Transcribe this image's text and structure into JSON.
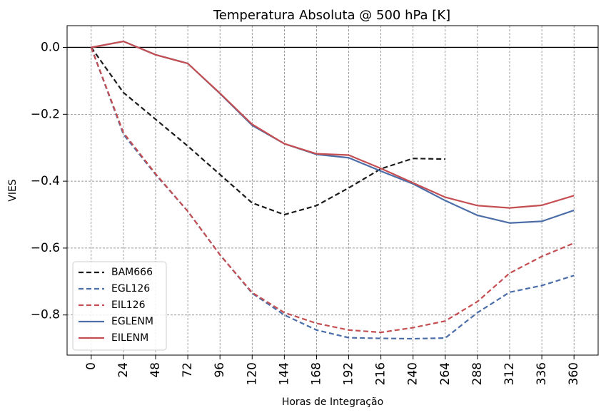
{
  "chart_data": {
    "type": "line",
    "title": "Temperatura Absoluta @ 500 hPa [K]",
    "xlabel": "Horas de Integração",
    "ylabel": "VIES",
    "x": [
      0,
      24,
      48,
      72,
      96,
      120,
      144,
      168,
      192,
      216,
      240,
      264,
      288,
      312,
      336,
      360
    ],
    "x_tick_labels": [
      "0",
      "24",
      "48",
      "72",
      "96",
      "120",
      "144",
      "168",
      "192",
      "216",
      "240",
      "264",
      "288",
      "312",
      "336",
      "360"
    ],
    "y_ticks": [
      0.0,
      -0.2,
      -0.4,
      -0.6,
      -0.8
    ],
    "y_tick_labels": [
      "0.0",
      "−0.2",
      "−0.4",
      "−0.6",
      "−0.8"
    ],
    "xlim": [
      -18,
      378
    ],
    "ylim": [
      -0.92,
      0.065
    ],
    "grid": true,
    "zero_line": true,
    "legend_position": "lower-left",
    "series": [
      {
        "name": "BAM666",
        "color": "#1a1a1a",
        "dash": "dashed",
        "x": [
          0,
          24,
          48,
          72,
          96,
          120,
          144,
          168,
          192,
          216,
          240,
          264
        ],
        "values": [
          0.0,
          -0.135,
          -0.215,
          -0.295,
          -0.38,
          -0.465,
          -0.5,
          -0.473,
          -0.42,
          -0.363,
          -0.332,
          -0.334
        ]
      },
      {
        "name": "EGL126",
        "color": "#4c6ea8",
        "dash": "dashed",
        "x": [
          0,
          24,
          48,
          72,
          96,
          120,
          144,
          168,
          192,
          216,
          240,
          264,
          288,
          312,
          336,
          360
        ],
        "values": [
          0.0,
          -0.26,
          -0.38,
          -0.49,
          -0.62,
          -0.735,
          -0.8,
          -0.845,
          -0.868,
          -0.87,
          -0.871,
          -0.869,
          -0.793,
          -0.732,
          -0.712,
          -0.682
        ]
      },
      {
        "name": "EIL126",
        "color": "#c44e52",
        "dash": "dashed",
        "x": [
          0,
          24,
          48,
          72,
          96,
          120,
          144,
          168,
          192,
          216,
          240,
          264,
          288,
          312,
          336,
          360
        ],
        "values": [
          0.0,
          -0.255,
          -0.378,
          -0.49,
          -0.62,
          -0.733,
          -0.793,
          -0.825,
          -0.845,
          -0.852,
          -0.838,
          -0.818,
          -0.76,
          -0.675,
          -0.625,
          -0.585
        ]
      },
      {
        "name": "EGLENM",
        "color": "#4c6ea8",
        "dash": "solid",
        "x": [
          0,
          24,
          48,
          72,
          96,
          120,
          144,
          168,
          192,
          216,
          240,
          264,
          288,
          312,
          336,
          360
        ],
        "values": [
          0.0,
          0.018,
          -0.022,
          -0.048,
          -0.138,
          -0.233,
          -0.288,
          -0.32,
          -0.33,
          -0.37,
          -0.408,
          -0.458,
          -0.502,
          -0.525,
          -0.52,
          -0.487
        ]
      },
      {
        "name": "EILENM",
        "color": "#c44e52",
        "dash": "solid",
        "x": [
          0,
          24,
          48,
          72,
          96,
          120,
          144,
          168,
          192,
          216,
          240,
          264,
          288,
          312,
          336,
          360
        ],
        "values": [
          0.0,
          0.018,
          -0.022,
          -0.048,
          -0.137,
          -0.23,
          -0.288,
          -0.318,
          -0.322,
          -0.362,
          -0.405,
          -0.448,
          -0.473,
          -0.48,
          -0.472,
          -0.443
        ]
      }
    ]
  }
}
